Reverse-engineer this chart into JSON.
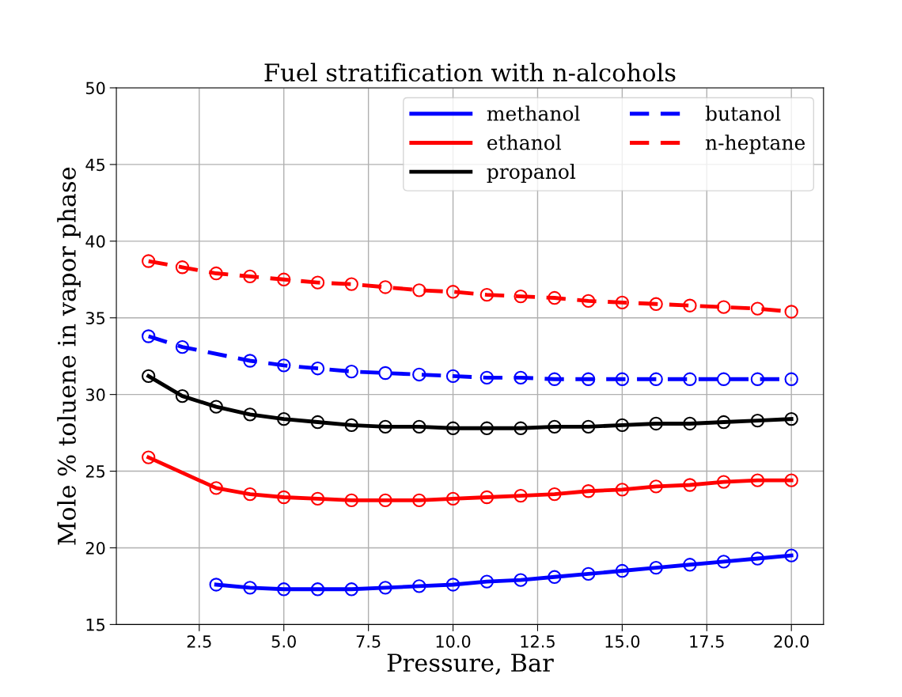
{
  "chart_data": {
    "type": "line",
    "title": "Fuel stratification with n-alcohols",
    "xlabel": "Pressure, Bar",
    "ylabel": "Mole % toluene in vapor phase",
    "series": [
      {
        "name": "methanol",
        "color": "#0000ff",
        "line_style": "solid",
        "x": [
          3,
          4,
          5,
          6,
          7,
          8,
          9,
          10,
          11,
          12,
          13,
          14,
          15,
          16,
          17,
          18,
          19,
          20
        ],
        "values": [
          17.6,
          17.4,
          17.3,
          17.3,
          17.3,
          17.4,
          17.5,
          17.6,
          17.8,
          17.9,
          18.1,
          18.3,
          18.5,
          18.7,
          18.9,
          19.1,
          19.3,
          19.5
        ]
      },
      {
        "name": "ethanol",
        "color": "#ff0000",
        "line_style": "solid",
        "x": [
          1,
          3,
          4,
          5,
          6,
          7,
          8,
          9,
          10,
          11,
          12,
          13,
          14,
          15,
          16,
          17,
          18,
          19,
          20
        ],
        "values": [
          25.9,
          23.9,
          23.5,
          23.3,
          23.2,
          23.1,
          23.1,
          23.1,
          23.2,
          23.3,
          23.4,
          23.5,
          23.7,
          23.8,
          24.0,
          24.1,
          24.3,
          24.4,
          24.4
        ]
      },
      {
        "name": "propanol",
        "color": "#000000",
        "line_style": "solid",
        "x": [
          1,
          2,
          3,
          4,
          5,
          6,
          7,
          8,
          9,
          10,
          11,
          12,
          13,
          14,
          15,
          16,
          17,
          18,
          19,
          20
        ],
        "values": [
          31.2,
          29.9,
          29.2,
          28.7,
          28.4,
          28.2,
          28.0,
          27.9,
          27.9,
          27.8,
          27.8,
          27.8,
          27.9,
          27.9,
          28.0,
          28.1,
          28.1,
          28.2,
          28.3,
          28.4
        ]
      },
      {
        "name": "butanol",
        "color": "#0000ff",
        "line_style": "dashed",
        "x": [
          1,
          2,
          4,
          5,
          6,
          7,
          8,
          9,
          10,
          11,
          12,
          13,
          14,
          15,
          16,
          17,
          18,
          19,
          20
        ],
        "values": [
          33.8,
          33.1,
          32.2,
          31.9,
          31.7,
          31.5,
          31.4,
          31.3,
          31.2,
          31.1,
          31.1,
          31.0,
          31.0,
          31.0,
          31.0,
          31.0,
          31.0,
          31.0,
          31.0
        ]
      },
      {
        "name": "n-heptane",
        "color": "#ff0000",
        "line_style": "dashed",
        "x": [
          1,
          2,
          3,
          4,
          5,
          6,
          7,
          8,
          9,
          10,
          11,
          12,
          13,
          14,
          15,
          16,
          17,
          18,
          19,
          20
        ],
        "values": [
          38.7,
          38.3,
          37.9,
          37.7,
          37.5,
          37.3,
          37.2,
          37.0,
          36.8,
          36.7,
          36.5,
          36.4,
          36.3,
          36.1,
          36.0,
          35.9,
          35.8,
          35.7,
          35.6,
          35.4
        ]
      }
    ],
    "marker": "circle",
    "grid": true,
    "legend": "top right",
    "xlim": [
      0.05,
      20.95
    ],
    "xticks": [
      {
        "value": 2.5,
        "label": "2.5"
      },
      {
        "value": 5,
        "label": "5.0"
      },
      {
        "value": 7.5,
        "label": "7.5"
      },
      {
        "value": 10,
        "label": "10.0"
      },
      {
        "value": 12.5,
        "label": "12.5"
      },
      {
        "value": 15,
        "label": "15.0"
      },
      {
        "value": 17.5,
        "label": "17.5"
      },
      {
        "value": 20,
        "label": "20.0"
      }
    ],
    "ylim": [
      15,
      50
    ],
    "yticks": [
      15,
      20,
      25,
      30,
      35,
      40,
      45,
      50
    ]
  }
}
